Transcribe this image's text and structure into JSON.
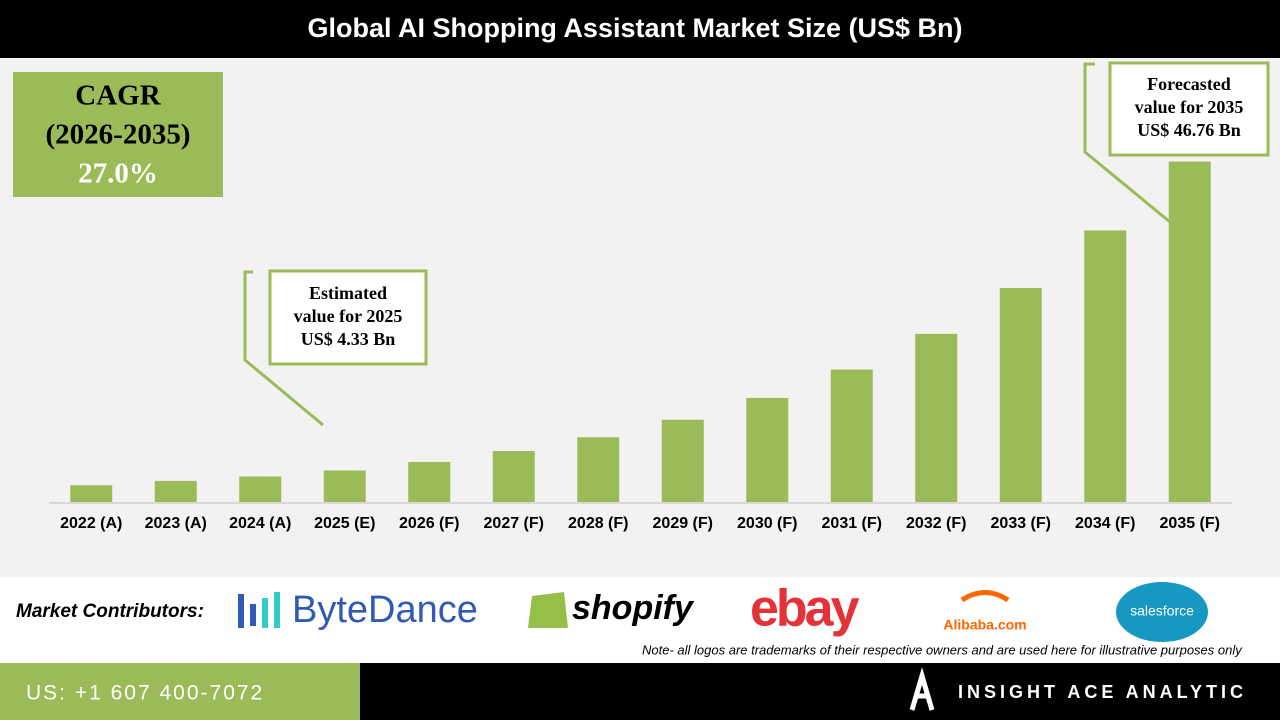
{
  "chart_data": {
    "type": "bar",
    "title": "Global AI Shopping Assistant Market Size (US$ Bn)",
    "categories": [
      "2022 (A)",
      "2023 (A)",
      "2024 (A)",
      "2025 (E)",
      "2026 (F)",
      "2027 (F)",
      "2028 (F)",
      "2029 (F)",
      "2030 (F)",
      "2031 (F)",
      "2032 (F)",
      "2033 (F)",
      "2034 (F)",
      "2035 (F)"
    ],
    "values": [
      2.3,
      2.9,
      3.5,
      4.33,
      5.5,
      7.0,
      8.9,
      11.3,
      14.3,
      18.2,
      23.1,
      29.4,
      37.3,
      46.76
    ],
    "color": "#9bbb59",
    "ylim": [
      0,
      50
    ],
    "cagr_box": [
      "CAGR",
      "(2026-2035)",
      "27.0%"
    ],
    "annotations": [
      [
        "Estimated",
        "value for 2025",
        "US$ 4.33 Bn"
      ],
      [
        "Forecasted",
        "value for 2035",
        "US$ 46.76 Bn"
      ]
    ]
  },
  "contributors": {
    "label": "Market Contributors:",
    "logos": [
      "ByteDance",
      "shopify",
      "ebay",
      "Alibaba.com",
      "salesforce"
    ],
    "note": "Note- all logos are trademarks of their respective owners and are used here for illustrative purposes only"
  },
  "footer": {
    "phone": "US: +1 607 400-7072",
    "brand": "INSIGHT ACE ANALYTIC"
  }
}
